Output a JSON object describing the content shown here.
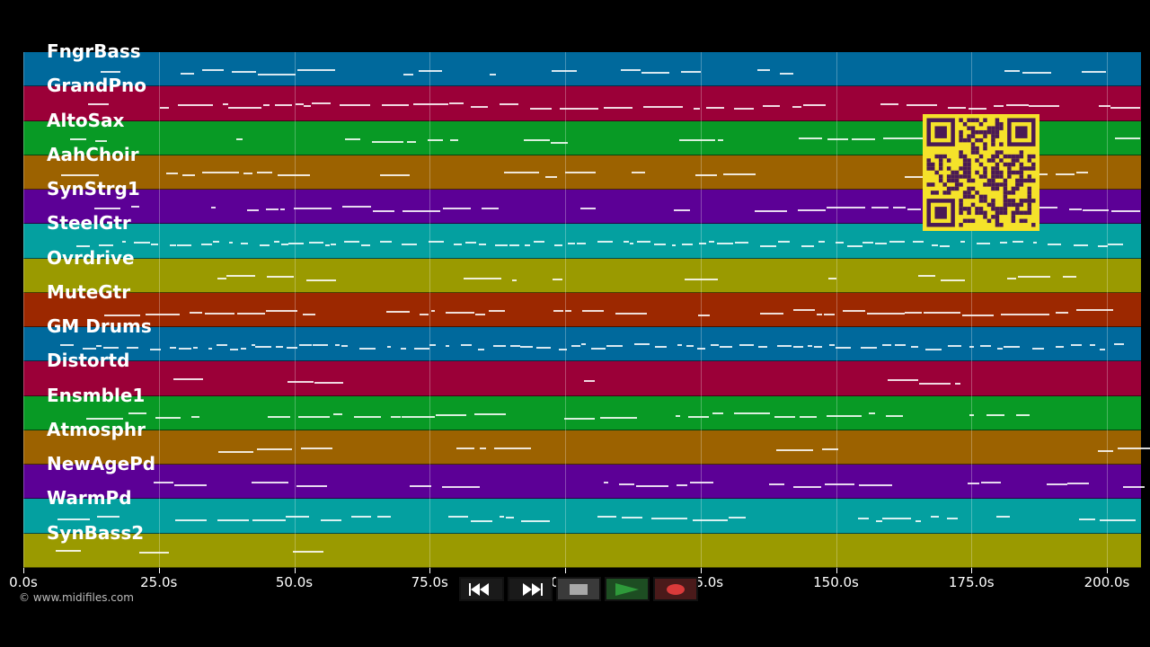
{
  "tracks": [
    {
      "label": "FngrBass",
      "color": "#00699c"
    },
    {
      "label": "GrandPno",
      "color": "#9b0038"
    },
    {
      "label": "AltoSax",
      "color": "#089a25"
    },
    {
      "label": "AahChoir",
      "color": "#9c6200"
    },
    {
      "label": "SynStrg1",
      "color": "#5c0096"
    },
    {
      "label": "SteelGtr",
      "color": "#04a0a0"
    },
    {
      "label": "Ovrdrive",
      "color": "#9a9a00"
    },
    {
      "label": "MuteGtr",
      "color": "#9c2800"
    },
    {
      "label": "GM Drums",
      "color": "#00699c"
    },
    {
      "label": "Distortd",
      "color": "#9b0038"
    },
    {
      "label": "Ensmble1",
      "color": "#089a25"
    },
    {
      "label": "Atmosphr",
      "color": "#9c6200"
    },
    {
      "label": "NewAgePd",
      "color": "#5c0096"
    },
    {
      "label": "WarmPd",
      "color": "#04a0a0"
    },
    {
      "label": "SynBass2",
      "color": "#9a9a00"
    }
  ],
  "timeline": {
    "ticks": [
      "0.0s",
      "25.0s",
      "50.0s",
      "75.0s",
      "100.0s",
      "125.0s",
      "150.0s",
      "175.0s",
      "200.0s"
    ],
    "max_seconds": 206
  },
  "copyright": "© www.midifiles.com",
  "transport": {
    "rewind_icon": "rewind-icon",
    "fast_forward_icon": "fast-forward-icon",
    "stop_icon": "stop-icon",
    "play_icon": "play-icon",
    "record_icon": "record-icon",
    "play_color": "#2e9a3a",
    "record_color": "#d93a3a"
  },
  "qr_code_color": "#f5e22a"
}
